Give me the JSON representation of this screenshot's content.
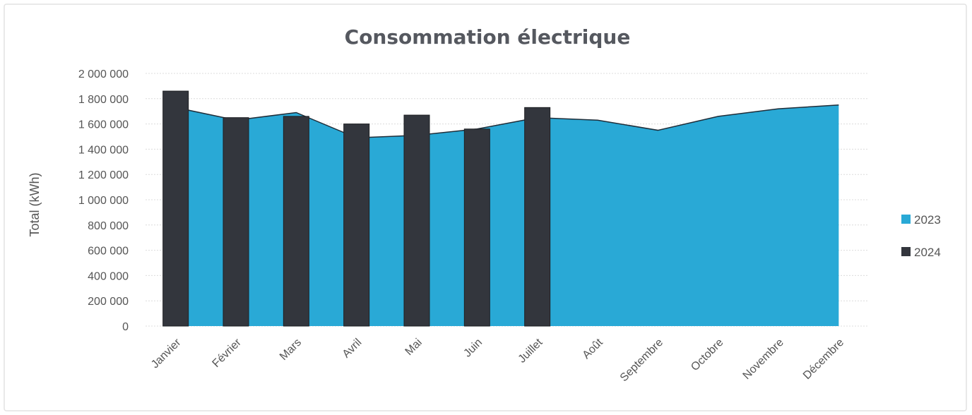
{
  "chart_data": {
    "type": "bar",
    "title": "Consommation électrique",
    "xlabel": "",
    "ylabel": "Total (kWh)",
    "categories": [
      "Janvier",
      "Février",
      "Mars",
      "Avril",
      "Mai",
      "Juin",
      "Juillet",
      "Août",
      "Septembre",
      "Octobre",
      "Novembre",
      "Décembre"
    ],
    "ylim": [
      0,
      2000000
    ],
    "y_ticks": [
      "2 000 000",
      "1 800 000",
      "1 600 000",
      "1 400 000",
      "1 200 000",
      "1 000 000",
      "800 000",
      "600 000",
      "400 000",
      "200 000",
      "0"
    ],
    "grid": true,
    "legend_position": "right",
    "series": [
      {
        "name": "2023",
        "type": "area",
        "color": "#29a9d6",
        "values": [
          1730000,
          1630000,
          1690000,
          1490000,
          1510000,
          1560000,
          1650000,
          1630000,
          1550000,
          1660000,
          1720000,
          1750000
        ]
      },
      {
        "name": "2024",
        "type": "bar",
        "color": "#33363d",
        "values": [
          1860000,
          1650000,
          1660000,
          1600000,
          1670000,
          1560000,
          1730000,
          null,
          null,
          null,
          null,
          null
        ]
      }
    ]
  }
}
